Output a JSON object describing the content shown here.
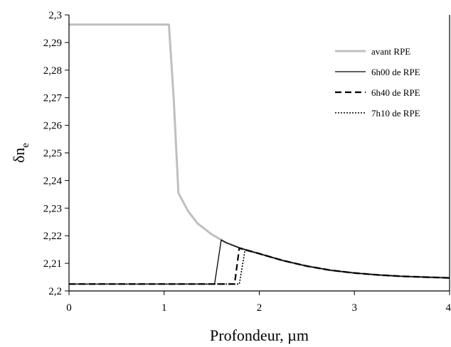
{
  "chart_data": {
    "type": "line",
    "title": "",
    "xlabel": "Profondeur, µm",
    "ylabel_main": "δn",
    "ylabel_sub": "e",
    "xlim": [
      0,
      4
    ],
    "ylim": [
      2.2,
      2.3
    ],
    "x_ticks": [
      {
        "value": 0,
        "label": "0"
      },
      {
        "value": 1,
        "label": "1"
      },
      {
        "value": 2,
        "label": "2"
      },
      {
        "value": 3,
        "label": "3"
      },
      {
        "value": 4,
        "label": "4"
      }
    ],
    "y_ticks": [
      {
        "value": 2.2,
        "label": "2,2"
      },
      {
        "value": 2.21,
        "label": "2,21"
      },
      {
        "value": 2.22,
        "label": "2,22"
      },
      {
        "value": 2.23,
        "label": "2,23"
      },
      {
        "value": 2.24,
        "label": "2,24"
      },
      {
        "value": 2.25,
        "label": "2,25"
      },
      {
        "value": 2.26,
        "label": "2,26"
      },
      {
        "value": 2.27,
        "label": "2,27"
      },
      {
        "value": 2.28,
        "label": "2,28"
      },
      {
        "value": 2.29,
        "label": "2,29"
      },
      {
        "value": 2.3,
        "label": "2,3"
      }
    ],
    "grid": false,
    "legend_position": "top-right",
    "series": [
      {
        "name": "avant RPE",
        "color": "#bfbfbf",
        "style": "solid",
        "width": 3,
        "points": [
          [
            0,
            2.2965
          ],
          [
            1.05,
            2.2965
          ],
          [
            1.1,
            2.27
          ],
          [
            1.15,
            2.2355
          ],
          [
            1.25,
            2.229
          ],
          [
            1.35,
            2.2245
          ],
          [
            1.5,
            2.2205
          ],
          [
            1.65,
            2.2175
          ],
          [
            1.8,
            2.2155
          ],
          [
            2.0,
            2.2135
          ],
          [
            2.25,
            2.211
          ],
          [
            2.5,
            2.209
          ],
          [
            2.75,
            2.2075
          ],
          [
            3.0,
            2.2065
          ],
          [
            3.25,
            2.2058
          ],
          [
            3.5,
            2.2053
          ],
          [
            3.75,
            2.205
          ],
          [
            4.0,
            2.2048
          ]
        ]
      },
      {
        "name": "6h00 de RPE",
        "color": "#000000",
        "style": "solid",
        "width": 1.3,
        "points": [
          [
            0,
            2.2025
          ],
          [
            1.53,
            2.2025
          ],
          [
            1.6,
            2.2185
          ],
          [
            1.65,
            2.2175
          ],
          [
            1.8,
            2.2155
          ],
          [
            2.0,
            2.2135
          ],
          [
            2.25,
            2.211
          ],
          [
            2.5,
            2.209
          ],
          [
            2.75,
            2.2075
          ],
          [
            3.0,
            2.2065
          ],
          [
            3.25,
            2.2058
          ],
          [
            3.5,
            2.2053
          ],
          [
            3.75,
            2.205
          ],
          [
            4.0,
            2.2047
          ]
        ]
      },
      {
        "name": "6h40 de RPE",
        "color": "#000000",
        "style": "dashed",
        "width": 2.2,
        "points": [
          [
            0,
            2.2025
          ],
          [
            1.74,
            2.2025
          ],
          [
            1.79,
            2.2155
          ],
          [
            2.0,
            2.2135
          ],
          [
            2.25,
            2.211
          ],
          [
            2.5,
            2.209
          ],
          [
            2.75,
            2.2075
          ],
          [
            3.0,
            2.2065
          ],
          [
            3.25,
            2.2058
          ],
          [
            3.5,
            2.2053
          ],
          [
            3.75,
            2.205
          ],
          [
            4.0,
            2.2047
          ]
        ]
      },
      {
        "name": "7h10 de RPE",
        "color": "#000000",
        "style": "dotted",
        "width": 1.6,
        "points": [
          [
            0,
            2.2025
          ],
          [
            1.79,
            2.2025
          ],
          [
            1.85,
            2.2148
          ],
          [
            2.0,
            2.2135
          ],
          [
            2.25,
            2.211
          ],
          [
            2.5,
            2.209
          ],
          [
            2.75,
            2.2075
          ],
          [
            3.0,
            2.2065
          ],
          [
            3.25,
            2.2058
          ],
          [
            3.5,
            2.2053
          ],
          [
            3.75,
            2.205
          ],
          [
            4.0,
            2.2047
          ]
        ]
      }
    ]
  }
}
